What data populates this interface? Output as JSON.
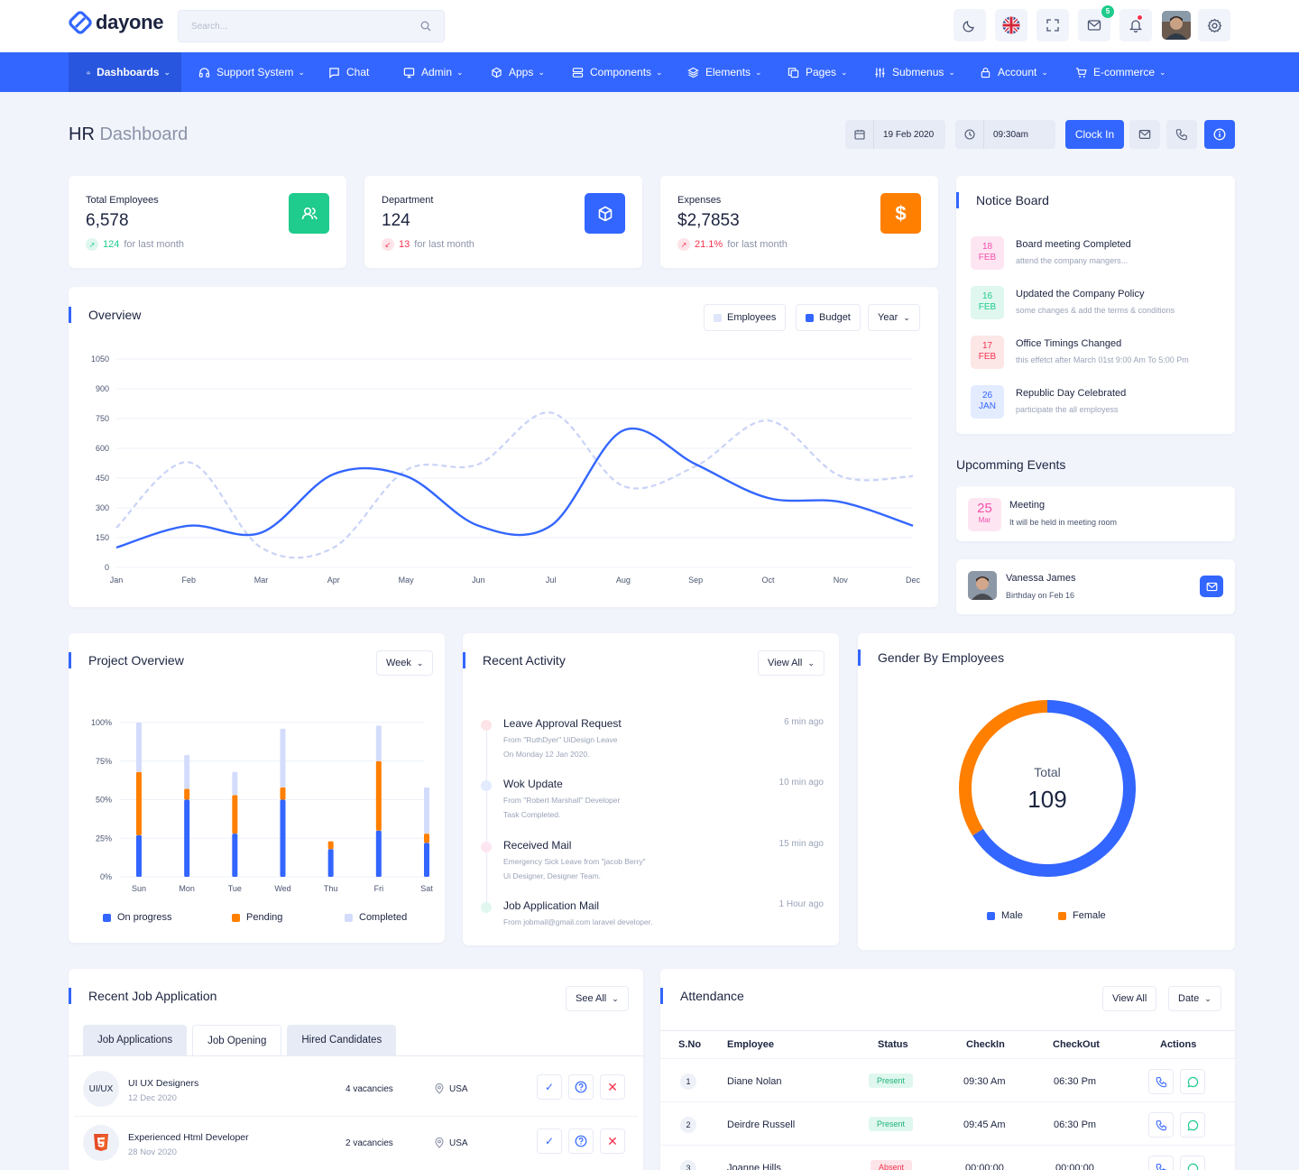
{
  "app": {
    "logo": "dayone",
    "search_placeholder": "Search...",
    "colors": {
      "primary": "#3366ff",
      "success": "#1fcb8d",
      "warning": "#ff7f00",
      "danger": "#f5334f",
      "pink": "#f74fac"
    },
    "notifications_badge": "5"
  },
  "nav": [
    {
      "label": "Dashboards",
      "icon": "home-icon",
      "active": true,
      "dropdown": true
    },
    {
      "label": "Support System",
      "icon": "headphones-icon",
      "dropdown": true
    },
    {
      "label": "Chat",
      "icon": "chat-icon",
      "dropdown": false
    },
    {
      "label": "Admin",
      "icon": "monitor-icon",
      "dropdown": true
    },
    {
      "label": "Apps",
      "icon": "cube-icon",
      "dropdown": true
    },
    {
      "label": "Components",
      "icon": "server-icon",
      "dropdown": true
    },
    {
      "label": "Elements",
      "icon": "layers-icon",
      "dropdown": true
    },
    {
      "label": "Pages",
      "icon": "copy-icon",
      "dropdown": true
    },
    {
      "label": "Submenus",
      "icon": "sliders-icon",
      "dropdown": true
    },
    {
      "label": "Account",
      "icon": "lock-icon",
      "dropdown": true
    },
    {
      "label": "E-commerce",
      "icon": "cart-icon",
      "dropdown": true
    }
  ],
  "header": {
    "title": "HR",
    "title_sub": "Dashboard",
    "date": "19 Feb 2020",
    "time": "09:30am",
    "clock_in": "Clock In"
  },
  "stats": [
    {
      "label": "Total Employees",
      "value": "6,578",
      "trend": "124",
      "trend_dir": "up",
      "trend_suffix": "for last month",
      "icon": "users-icon",
      "color": "#1fcb8d"
    },
    {
      "label": "Department",
      "value": "124",
      "trend": "13",
      "trend_dir": "down",
      "trend_suffix": "for last month",
      "icon": "box-icon",
      "color": "#3366ff"
    },
    {
      "label": "Expenses",
      "value": "$2,7853",
      "trend": "21.1%",
      "trend_dir": "up-red",
      "trend_suffix": "for last month",
      "icon": "dollar-icon",
      "color": "#ff7f00"
    }
  ],
  "overview": {
    "title": "Overview",
    "legend": [
      "Employees",
      "Budget"
    ],
    "period": "Year"
  },
  "notice_board": {
    "title": "Notice Board",
    "items": [
      {
        "day": "18",
        "month": "FEB",
        "title": "Board meeting Completed",
        "sub": "attend the company mangers...",
        "color": "#f74fac",
        "bg": "#fde6f2"
      },
      {
        "day": "16",
        "month": "FEB",
        "title": "Updated the Company Policy",
        "sub": "some changes & add the terms & conditions",
        "color": "#1fcb8d",
        "bg": "#dff7ee"
      },
      {
        "day": "17",
        "month": "FEB",
        "title": "Office Timings Changed",
        "sub": "this effetct after March 01st 9:00 Am To 5:00 Pm",
        "color": "#f5334f",
        "bg": "#fde6e6"
      },
      {
        "day": "26",
        "month": "JAN",
        "title": "Republic Day Celebrated",
        "sub": "participate the all employess",
        "color": "#3366ff",
        "bg": "#e3ebff"
      }
    ]
  },
  "events": {
    "title": "Upcomming Events",
    "meeting": {
      "day": "25",
      "month": "Mar",
      "title": "Meeting",
      "sub": "It will be held in meeting room"
    },
    "birthday": {
      "name": "Vanessa James",
      "sub": "Birthday on Feb 16"
    }
  },
  "project_overview": {
    "title": "Project Overview",
    "period": "Week",
    "legend": [
      "On progress",
      "Pending",
      "Completed"
    ]
  },
  "recent_activity": {
    "title": "Recent Activity",
    "view_all": "View All",
    "items": [
      {
        "title": "Leave Approval Request",
        "line1": "From \"RuthDyer\" UiDesign Leave",
        "line2": "On Monday 12 Jan 2020.",
        "time": "6 min ago",
        "color": "#f5334f"
      },
      {
        "title": "Wok Update",
        "line1": "From \"Robert Marshall\" Developer",
        "line2": "Task Completed.",
        "time": "10 min ago",
        "color": "#3366ff"
      },
      {
        "title": "Received Mail",
        "line1": "Emergency Sick Leave from \"jacob Berry\"",
        "line2": "Ui Designer, Designer Team.",
        "time": "15 min ago",
        "color": "#f74fac"
      },
      {
        "title": "Job Application Mail",
        "line1": "From jobmail@gmail.com laravel developer.",
        "line2": "",
        "time": "1 Hour ago",
        "color": "#1fcb8d"
      }
    ]
  },
  "gender": {
    "title": "Gender By Employees",
    "total_label": "Total",
    "total": "109",
    "legend": [
      "Male",
      "Female"
    ]
  },
  "jobs": {
    "title": "Recent Job Application",
    "see_all": "See All",
    "tabs": [
      "Job Applications",
      "Job Opening",
      "Hired Candidates"
    ],
    "rows": [
      {
        "avatar": "UI/UX",
        "title": "UI UX Designers",
        "date": "12 Dec 2020",
        "vacancies": "4 vacancies",
        "location": "USA"
      },
      {
        "avatar": "html5",
        "title": "Experienced Html Developer",
        "date": "28 Nov 2020",
        "vacancies": "2 vacancies",
        "location": "USA"
      }
    ]
  },
  "attendance": {
    "title": "Attendance",
    "view_all": "View All",
    "date": "Date",
    "columns": [
      "S.No",
      "Employee",
      "Status",
      "CheckIn",
      "CheckOut",
      "Actions"
    ],
    "rows": [
      {
        "no": "1",
        "name": "Diane Nolan",
        "status": "Present",
        "checkin": "09:30 Am",
        "checkout": "06:30 Pm"
      },
      {
        "no": "2",
        "name": "Deirdre Russell",
        "status": "Present",
        "checkin": "09:45 Am",
        "checkout": "06:30 Pm"
      },
      {
        "no": "3",
        "name": "Joanne Hills",
        "status": "Absent",
        "checkin": "00:00:00",
        "checkout": "00:00:00"
      }
    ]
  },
  "chart_data": [
    {
      "type": "line",
      "categories": [
        "Jan",
        "Feb",
        "Mar",
        "Apr",
        "May",
        "Jun",
        "Jul",
        "Aug",
        "Sep",
        "Oct",
        "Nov",
        "Dec"
      ],
      "ylim": [
        0,
        1050
      ],
      "yticks": [
        0,
        150,
        300,
        450,
        600,
        750,
        900,
        1050
      ],
      "series": [
        {
          "name": "Employees",
          "values": [
            200,
            530,
            100,
            100,
            490,
            520,
            780,
            410,
            510,
            740,
            460,
            460
          ],
          "color": "#c9d3f7",
          "dashed": true
        },
        {
          "name": "Budget",
          "values": [
            100,
            210,
            175,
            470,
            460,
            210,
            210,
            690,
            520,
            350,
            330,
            210
          ],
          "color": "#3366ff",
          "dashed": false
        }
      ]
    },
    {
      "type": "bar",
      "stacked": true,
      "categories": [
        "Sun",
        "Mon",
        "Tue",
        "Wed",
        "Thu",
        "Fri",
        "Sat"
      ],
      "ylim": [
        0,
        100
      ],
      "yticks": [
        "0%",
        "25%",
        "50%",
        "75%",
        "100%"
      ],
      "series": [
        {
          "name": "On progress",
          "values": [
            27,
            50,
            28,
            50,
            18,
            30,
            22
          ],
          "color": "#3366ff"
        },
        {
          "name": "Pending",
          "values": [
            41,
            7,
            25,
            8,
            5,
            45,
            6
          ],
          "color": "#ff7f00"
        },
        {
          "name": "Completed",
          "values": [
            32,
            22,
            15,
            38,
            0,
            23,
            30
          ],
          "color": "#d3dcfb"
        }
      ]
    },
    {
      "type": "pie",
      "donut": true,
      "categories": [
        "Male",
        "Female"
      ],
      "values": [
        72,
        37
      ],
      "colors": [
        "#3366ff",
        "#ff7f00"
      ]
    }
  ]
}
